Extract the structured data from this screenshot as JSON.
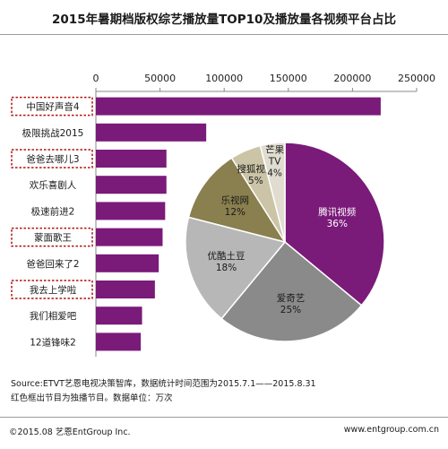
{
  "chart_data": [
    {
      "type": "bar",
      "orientation": "horizontal",
      "title": "2015年暑期档版权综艺播放量TOP10及播放量各视频平台占比",
      "categories": [
        "中国好声音4",
        "极限挑战2015",
        "爸爸去哪儿3",
        "欢乐喜剧人",
        "极速前进2",
        "蒙面歌王",
        "爸爸回来了2",
        "我去上学啦",
        "我们相爱吧",
        "12道锋味2"
      ],
      "values": [
        222000,
        86000,
        55000,
        55000,
        54000,
        52000,
        49000,
        46000,
        36000,
        35000
      ],
      "exclusive": [
        true,
        false,
        true,
        false,
        false,
        true,
        false,
        true,
        false,
        false
      ],
      "xlim": [
        0,
        250000
      ],
      "xticks": [
        "0",
        "50000",
        "100000",
        "150000",
        "200000",
        "250000"
      ],
      "grid": false,
      "bar_color": "#7a1a79"
    },
    {
      "type": "pie",
      "labels": [
        "腾讯视频",
        "爱奇艺",
        "优酷土豆",
        "乐视网",
        "搜狐视频",
        "芒果TV"
      ],
      "values": [
        36,
        25,
        18,
        12,
        5,
        4
      ],
      "value_labels": [
        "36%",
        "25%",
        "18%",
        "12%",
        "5%",
        "4%"
      ],
      "colors": [
        "#7a1a79",
        "#8a8a8a",
        "#b7b7b7",
        "#8a7f4e",
        "#cbc4a6",
        "#e0ddd0"
      ]
    }
  ],
  "source": "Source:ETVT艺恩电视决策智库，数据统计时间范围为2015.7.1——2015.8.31",
  "note": "红色框出节目为独播节目。数据单位：万次",
  "copyright": "©2015.08 艺恩EntGroup Inc.",
  "website": "www.entgroup.com.cn"
}
